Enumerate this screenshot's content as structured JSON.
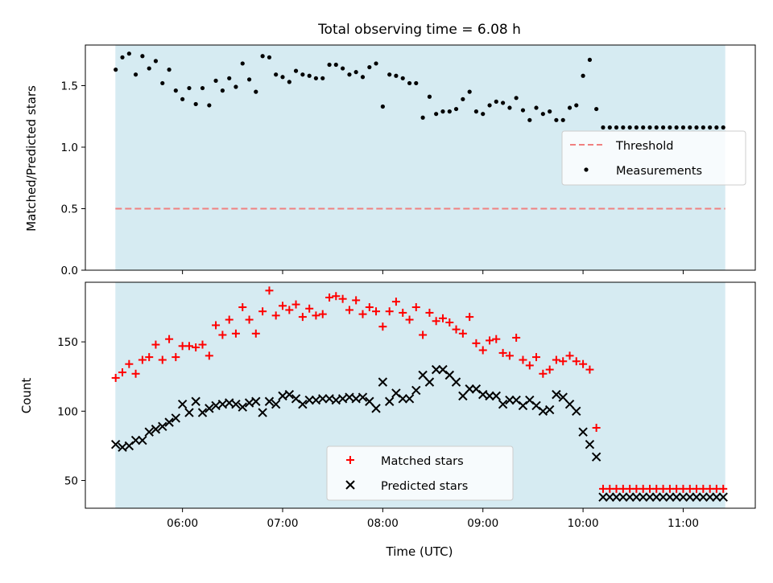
{
  "figure": {
    "title": "Total observing time = 6.08 h"
  },
  "chart_data": [
    {
      "type": "scatter",
      "title": "Total observing time = 6.08 h",
      "ylabel": "Matched/Predicted stars",
      "xlabel": "",
      "x_unit": "time UTC (h)",
      "xlim": [
        5.03,
        11.72
      ],
      "ylim": [
        0.0,
        1.83
      ],
      "yticks": [
        0.0,
        0.5,
        1.0,
        1.5
      ],
      "ytick_labels": [
        "0.0",
        "0.5",
        "1.0",
        "1.5"
      ],
      "xticks": [
        6,
        7,
        8,
        9,
        10,
        11
      ],
      "grid": false,
      "shaded_span": {
        "x_start": 5.33,
        "x_end": 11.42,
        "color": "#add8e6"
      },
      "threshold": {
        "name": "Threshold",
        "y": 0.5,
        "color": "#f08080",
        "style": "dashed"
      },
      "legend_position": "center-right",
      "legend": [
        "Threshold",
        "Measurements"
      ],
      "series": [
        {
          "name": "Measurements",
          "color": "#000000",
          "marker": "dot",
          "x": [
            5.333,
            5.4,
            5.467,
            5.533,
            5.6,
            5.667,
            5.733,
            5.8,
            5.867,
            5.933,
            6.0,
            6.067,
            6.133,
            6.2,
            6.267,
            6.333,
            6.4,
            6.467,
            6.533,
            6.6,
            6.667,
            6.733,
            6.8,
            6.867,
            6.933,
            7.0,
            7.067,
            7.133,
            7.2,
            7.267,
            7.333,
            7.4,
            7.467,
            7.533,
            7.6,
            7.667,
            7.733,
            7.8,
            7.867,
            7.933,
            8.0,
            8.067,
            8.133,
            8.2,
            8.267,
            8.333,
            8.4,
            8.467,
            8.533,
            8.6,
            8.667,
            8.733,
            8.8,
            8.867,
            8.933,
            9.0,
            9.067,
            9.133,
            9.2,
            9.267,
            9.333,
            9.4,
            9.467,
            9.533,
            9.6,
            9.667,
            9.733,
            9.8,
            9.867,
            9.933,
            10.0,
            10.067,
            10.133,
            10.2,
            10.267,
            10.333,
            10.4,
            10.467,
            10.533,
            10.6,
            10.667,
            10.733,
            10.8,
            10.867,
            10.933,
            11.0,
            11.067,
            11.133,
            11.2,
            11.267,
            11.333,
            11.4
          ],
          "y": [
            1.63,
            1.73,
            1.76,
            1.59,
            1.74,
            1.64,
            1.7,
            1.52,
            1.63,
            1.46,
            1.39,
            1.48,
            1.35,
            1.48,
            1.34,
            1.54,
            1.46,
            1.56,
            1.49,
            1.68,
            1.55,
            1.45,
            1.74,
            1.73,
            1.59,
            1.57,
            1.53,
            1.62,
            1.59,
            1.58,
            1.56,
            1.56,
            1.67,
            1.67,
            1.64,
            1.59,
            1.61,
            1.57,
            1.65,
            1.68,
            1.33,
            1.59,
            1.58,
            1.56,
            1.52,
            1.52,
            1.24,
            1.41,
            1.27,
            1.29,
            1.29,
            1.31,
            1.39,
            1.45,
            1.29,
            1.27,
            1.34,
            1.37,
            1.36,
            1.32,
            1.4,
            1.3,
            1.22,
            1.32,
            1.27,
            1.29,
            1.22,
            1.22,
            1.32,
            1.34,
            1.58,
            1.71,
            1.31,
            1.16,
            1.16,
            1.16,
            1.16,
            1.16,
            1.16,
            1.16,
            1.16,
            1.16,
            1.16,
            1.16,
            1.16,
            1.16,
            1.16,
            1.16,
            1.16,
            1.16,
            1.16,
            1.16
          ]
        }
      ]
    },
    {
      "type": "scatter",
      "title": "",
      "ylabel": "Count",
      "xlabel": "Time (UTC)",
      "x_unit": "time UTC (h)",
      "xlim": [
        5.03,
        11.72
      ],
      "ylim": [
        30,
        193
      ],
      "yticks": [
        50,
        100,
        150
      ],
      "ytick_labels": [
        "50",
        "100",
        "150"
      ],
      "xticks": [
        6,
        7,
        8,
        9,
        10,
        11
      ],
      "xtick_labels": [
        "06:00",
        "07:00",
        "08:00",
        "09:00",
        "10:00",
        "11:00"
      ],
      "grid": false,
      "shaded_span": {
        "x_start": 5.33,
        "x_end": 11.42,
        "color": "#add8e6"
      },
      "legend_position": "lower-center",
      "legend": [
        "Matched stars",
        "Predicted stars"
      ],
      "series": [
        {
          "name": "Matched stars",
          "color": "#ff0000",
          "marker": "plus",
          "x": [
            5.333,
            5.4,
            5.467,
            5.533,
            5.6,
            5.667,
            5.733,
            5.8,
            5.867,
            5.933,
            6.0,
            6.067,
            6.133,
            6.2,
            6.267,
            6.333,
            6.4,
            6.467,
            6.533,
            6.6,
            6.667,
            6.733,
            6.8,
            6.867,
            6.933,
            7.0,
            7.067,
            7.133,
            7.2,
            7.267,
            7.333,
            7.4,
            7.467,
            7.533,
            7.6,
            7.667,
            7.733,
            7.8,
            7.867,
            7.933,
            8.0,
            8.067,
            8.133,
            8.2,
            8.267,
            8.333,
            8.4,
            8.467,
            8.533,
            8.6,
            8.667,
            8.733,
            8.8,
            8.867,
            8.933,
            9.0,
            9.067,
            9.133,
            9.2,
            9.267,
            9.333,
            9.4,
            9.467,
            9.533,
            9.6,
            9.667,
            9.733,
            9.8,
            9.867,
            9.933,
            10.0,
            10.067,
            10.133,
            10.2,
            10.267,
            10.333,
            10.4,
            10.467,
            10.533,
            10.6,
            10.667,
            10.733,
            10.8,
            10.867,
            10.933,
            11.0,
            11.067,
            11.133,
            11.2,
            11.267,
            11.333,
            11.4
          ],
          "y": [
            124,
            128,
            134,
            127,
            137,
            139,
            148,
            137,
            152,
            139,
            147,
            147,
            146,
            148,
            140,
            162,
            155,
            166,
            156,
            175,
            166,
            156,
            172,
            187,
            169,
            176,
            173,
            177,
            168,
            174,
            169,
            170,
            182,
            183,
            181,
            173,
            180,
            170,
            175,
            172,
            161,
            172,
            179,
            171,
            166,
            175,
            155,
            171,
            165,
            167,
            164,
            159,
            156,
            168,
            149,
            144,
            151,
            152,
            142,
            140,
            153,
            137,
            133,
            139,
            127,
            130,
            137,
            136,
            140,
            136,
            134,
            130,
            88,
            44,
            44,
            44,
            44,
            44,
            44,
            44,
            44,
            44,
            44,
            44,
            44,
            44,
            44,
            44,
            44,
            44,
            44,
            44
          ]
        },
        {
          "name": "Predicted stars",
          "color": "#000000",
          "marker": "cross",
          "x": [
            5.333,
            5.4,
            5.467,
            5.533,
            5.6,
            5.667,
            5.733,
            5.8,
            5.867,
            5.933,
            6.0,
            6.067,
            6.133,
            6.2,
            6.267,
            6.333,
            6.4,
            6.467,
            6.533,
            6.6,
            6.667,
            6.733,
            6.8,
            6.867,
            6.933,
            7.0,
            7.067,
            7.133,
            7.2,
            7.267,
            7.333,
            7.4,
            7.467,
            7.533,
            7.6,
            7.667,
            7.733,
            7.8,
            7.867,
            7.933,
            8.0,
            8.067,
            8.133,
            8.2,
            8.267,
            8.333,
            8.4,
            8.467,
            8.533,
            8.6,
            8.667,
            8.733,
            8.8,
            8.867,
            8.933,
            9.0,
            9.067,
            9.133,
            9.2,
            9.267,
            9.333,
            9.4,
            9.467,
            9.533,
            9.6,
            9.667,
            9.733,
            9.8,
            9.867,
            9.933,
            10.0,
            10.067,
            10.133,
            10.2,
            10.267,
            10.333,
            10.4,
            10.467,
            10.533,
            10.6,
            10.667,
            10.733,
            10.8,
            10.867,
            10.933,
            11.0,
            11.067,
            11.133,
            11.2,
            11.267,
            11.333,
            11.4
          ],
          "y": [
            76,
            74,
            75,
            79,
            79,
            85,
            87,
            89,
            92,
            95,
            105,
            99,
            107,
            99,
            102,
            104,
            105,
            106,
            105,
            103,
            106,
            107,
            99,
            107,
            105,
            111,
            112,
            109,
            105,
            108,
            108,
            109,
            109,
            108,
            109,
            110,
            109,
            110,
            107,
            102,
            121,
            107,
            113,
            109,
            109,
            115,
            126,
            121,
            130,
            130,
            126,
            121,
            111,
            116,
            116,
            112,
            111,
            111,
            105,
            108,
            108,
            104,
            108,
            104,
            100,
            101,
            112,
            110,
            105,
            100,
            85,
            76,
            67,
            38,
            38,
            38,
            38,
            38,
            38,
            38,
            38,
            38,
            38,
            38,
            38,
            38,
            38,
            38,
            38,
            38,
            38,
            38
          ]
        }
      ]
    }
  ]
}
